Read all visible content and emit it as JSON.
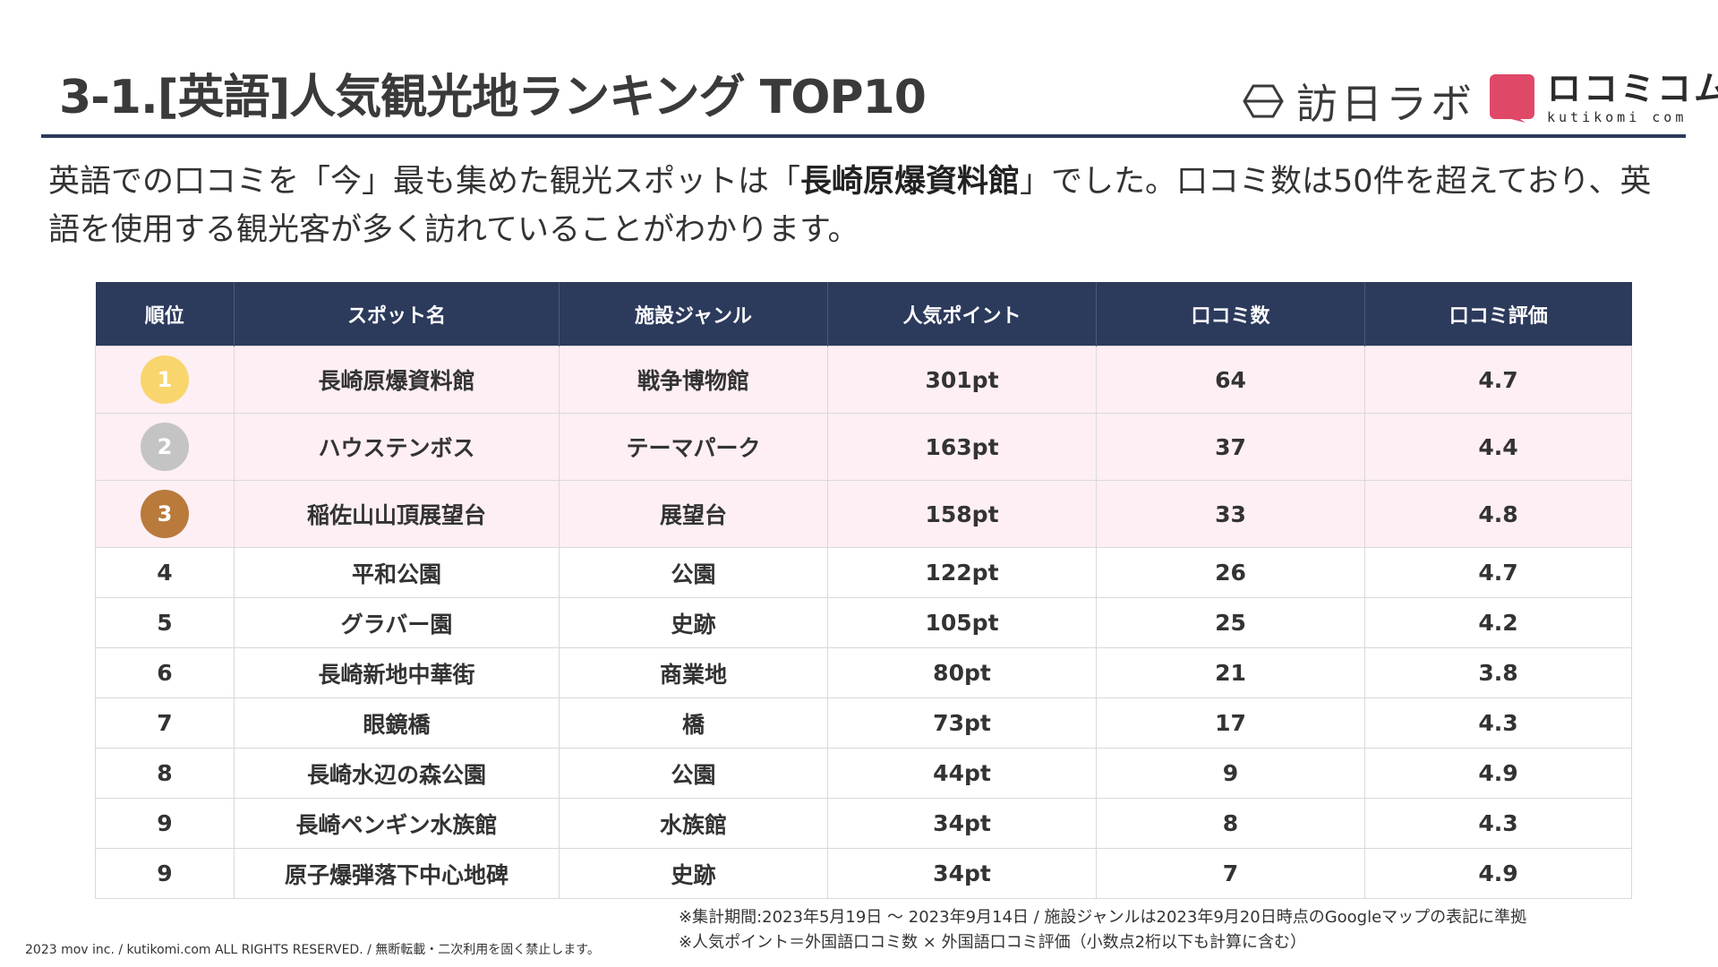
{
  "header": {
    "title": "3-1.[英語]人気観光地ランキング TOP10",
    "logo_houjin": "訪日ラボ",
    "logo_kutikomi": "ロコミコム",
    "logo_kutikomi_sub": "kutikomi com"
  },
  "lead": {
    "part1": "英語での口コミを「今」最も集めた観光スポットは「",
    "highlight": "長崎原爆資料館",
    "part2": "」でした。口コミ数は50件を超えており、英語を使用する観光客が多く訪れていることがわかります。"
  },
  "table": {
    "headers": [
      "順位",
      "スポット名",
      "施設ジャンル",
      "人気ポイント",
      "口コミ数",
      "口コミ評価"
    ],
    "rows": [
      {
        "rank": "1",
        "name": "長崎原爆資料館",
        "genre": "戦争博物館",
        "points": "301pt",
        "count": "64",
        "rating": "4.7"
      },
      {
        "rank": "2",
        "name": "ハウステンボス",
        "genre": "テーマパーク",
        "points": "163pt",
        "count": "37",
        "rating": "4.4"
      },
      {
        "rank": "3",
        "name": "稲佐山山頂展望台",
        "genre": "展望台",
        "points": "158pt",
        "count": "33",
        "rating": "4.8"
      },
      {
        "rank": "4",
        "name": "平和公園",
        "genre": "公園",
        "points": "122pt",
        "count": "26",
        "rating": "4.7"
      },
      {
        "rank": "5",
        "name": "グラバー園",
        "genre": "史跡",
        "points": "105pt",
        "count": "25",
        "rating": "4.2"
      },
      {
        "rank": "6",
        "name": "長崎新地中華街",
        "genre": "商業地",
        "points": "80pt",
        "count": "21",
        "rating": "3.8"
      },
      {
        "rank": "7",
        "name": "眼鏡橋",
        "genre": "橋",
        "points": "73pt",
        "count": "17",
        "rating": "4.3"
      },
      {
        "rank": "8",
        "name": "長崎水辺の森公園",
        "genre": "公園",
        "points": "44pt",
        "count": "9",
        "rating": "4.9"
      },
      {
        "rank": "9",
        "name": "長崎ペンギン水族館",
        "genre": "水族館",
        "points": "34pt",
        "count": "8",
        "rating": "4.3"
      },
      {
        "rank": "9",
        "name": "原子爆弾落下中心地碑",
        "genre": "史跡",
        "points": "34pt",
        "count": "7",
        "rating": "4.9"
      }
    ],
    "medal_colors": [
      "#f9d56e",
      "#c4c4c4",
      "#b97a3c"
    ],
    "top_row_bg": "#fdeff4",
    "header_bg": "#2c3a5c"
  },
  "notes": {
    "line1": "※集計期間:2023年5月19日 ～ 2023年9月14日 / 施設ジャンルは2023年9月20日時点のGoogleマップの表記に準拠",
    "line2": "※人気ポイント＝外国語口コミ数 × 外国語口コミ評価（小数点2桁以下も計算に含む）"
  },
  "footer": {
    "copyright": "2023 mov inc. / kutikomi.com ALL RIGHTS RESERVED. / 無断転載・二次利用を固く禁止します。"
  }
}
